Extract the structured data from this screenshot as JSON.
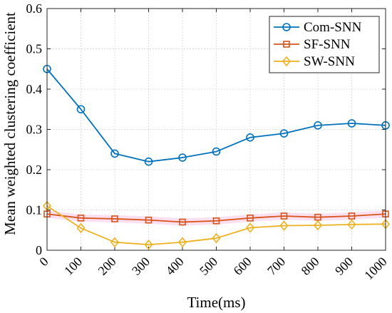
{
  "chart_data": {
    "type": "line",
    "title": "",
    "xlabel": "Time(ms)",
    "ylabel": "Mean weighted clustering coefficient",
    "x": [
      0,
      100,
      200,
      300,
      400,
      500,
      600,
      700,
      800,
      900,
      1000
    ],
    "xticks": [
      "0",
      "100",
      "200",
      "300",
      "400",
      "500",
      "600",
      "700",
      "800",
      "900",
      "1000"
    ],
    "yticks": [
      "0",
      "0.1",
      "0.2",
      "0.3",
      "0.4",
      "0.5",
      "0.6"
    ],
    "xlim": [
      0,
      1000
    ],
    "ylim": [
      0,
      0.6
    ],
    "grid": true,
    "legend_position": "top-right",
    "series": [
      {
        "name": "Com-SNN",
        "color": "#0072BD",
        "marker": "circle",
        "values": [
          0.45,
          0.35,
          0.24,
          0.22,
          0.23,
          0.245,
          0.28,
          0.29,
          0.31,
          0.315,
          0.31
        ]
      },
      {
        "name": "SF-SNN",
        "color": "#D95319",
        "marker": "square",
        "values": [
          0.09,
          0.08,
          0.078,
          0.075,
          0.07,
          0.073,
          0.08,
          0.085,
          0.082,
          0.085,
          0.09
        ]
      },
      {
        "name": "SW-SNN",
        "color": "#EDB120",
        "marker": "diamond",
        "values": [
          0.11,
          0.055,
          0.02,
          0.014,
          0.02,
          0.03,
          0.056,
          0.061,
          0.062,
          0.064,
          0.065
        ]
      }
    ],
    "band_color": "#F5C6E6"
  }
}
